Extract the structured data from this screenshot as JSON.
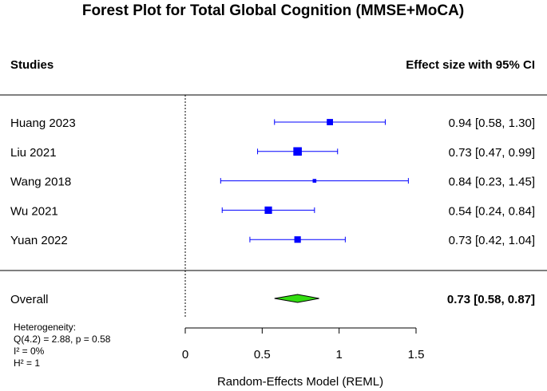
{
  "chart_data": {
    "type": "forest",
    "title": "Forest Plot for Total Global Cognition (MMSE+MoCA)",
    "column_headers": {
      "studies": "Studies",
      "effect": "Effect size with 95% CI"
    },
    "xlabel": "Random-Effects Model (REML)",
    "x_ticks": [
      0,
      0.5,
      1,
      1.5
    ],
    "x_tick_labels": [
      "0",
      "0.5",
      "1",
      "1.5"
    ],
    "reference_line": 0,
    "studies": [
      {
        "name": "Huang 2023",
        "estimate": 0.94,
        "ci_low": 0.58,
        "ci_high": 1.3,
        "weight": 0.9,
        "label": "0.94 [0.58, 1.30]"
      },
      {
        "name": "Liu 2021",
        "estimate": 0.73,
        "ci_low": 0.47,
        "ci_high": 0.99,
        "weight": 1.3,
        "label": "0.73 [0.47, 0.99]"
      },
      {
        "name": "Wang 2018",
        "estimate": 0.84,
        "ci_low": 0.23,
        "ci_high": 1.45,
        "weight": 0.45,
        "label": "0.84 [0.23, 1.45]"
      },
      {
        "name": "Wu 2021",
        "estimate": 0.54,
        "ci_low": 0.24,
        "ci_high": 0.84,
        "weight": 1.1,
        "label": "0.54 [0.24, 0.84]"
      },
      {
        "name": "Yuan 2022",
        "estimate": 0.73,
        "ci_low": 0.42,
        "ci_high": 1.04,
        "weight": 0.95,
        "label": "0.73 [0.42, 1.04]"
      }
    ],
    "overall": {
      "name": "Overall",
      "estimate": 0.73,
      "ci_low": 0.58,
      "ci_high": 0.87,
      "label": "0.73 [0.58, 0.87]"
    },
    "heterogeneity": {
      "heading": "Heterogeneity:",
      "q_line": "Q(4.2) = 2.88, p = 0.58",
      "i2_line": "I² = 0%",
      "h2_line": "H² = 1"
    },
    "colors": {
      "study_marker": "#0000ff",
      "overall_fill": "#33dd11",
      "overall_stroke": "#000000"
    }
  }
}
